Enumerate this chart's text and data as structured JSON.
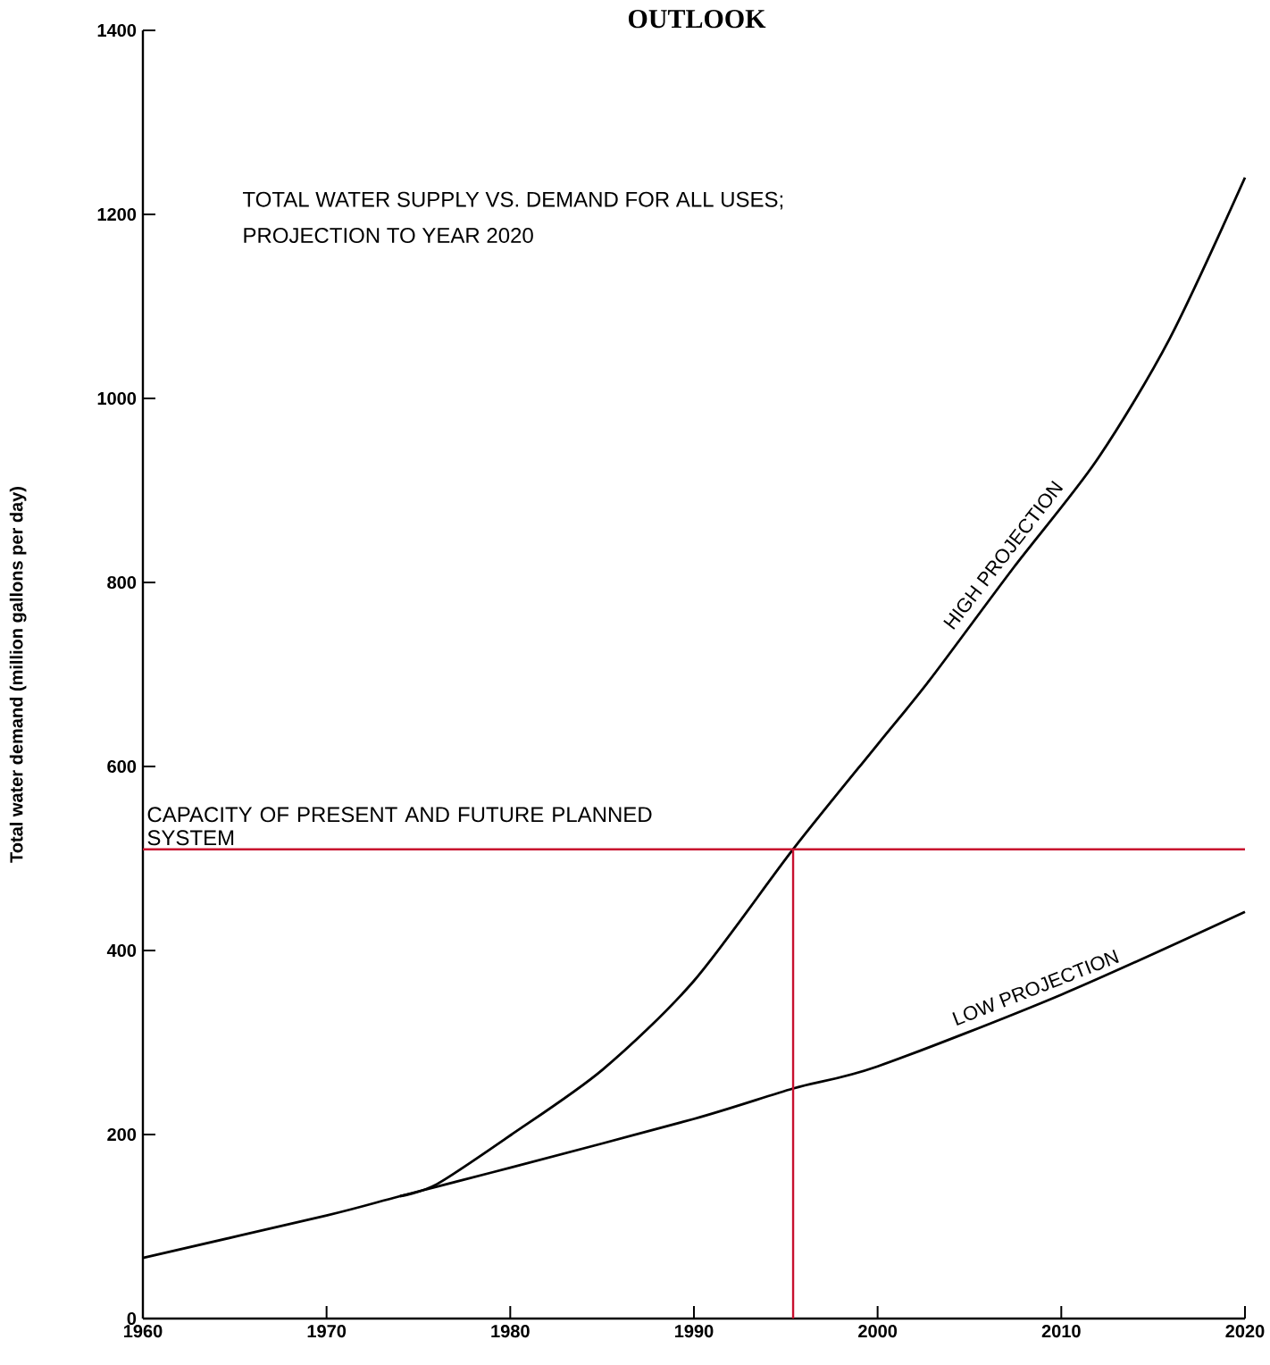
{
  "chart_data": {
    "type": "line",
    "title": "OUTLOOK",
    "ylabel": "Total water demand (million gallons per day)",
    "annotations": [
      "TOTAL WATER SUPPLY VS. DEMAND FOR ALL USES;",
      "PROJECTION TO YEAR 2020"
    ],
    "xlim": [
      1960,
      2020
    ],
    "xticks": [
      1960,
      1970,
      1980,
      1990,
      2000,
      2010,
      2020
    ],
    "ylim": [
      0,
      1400
    ],
    "yticks": [
      0,
      200,
      400,
      600,
      800,
      1000,
      1200,
      1400
    ],
    "grid": false,
    "marker": "none",
    "line_style": "solid",
    "series": [
      {
        "name": "HIGH PROJECTION",
        "color": "#000000",
        "x": [
          1974,
          1976,
          1980,
          1985,
          1990,
          1995.4,
          2000,
          2002.8,
          2007.4,
          2011.9,
          2015.9,
          2020
        ],
        "values": [
          133,
          146,
          199,
          270,
          367,
          510,
          624,
          693,
          816,
          932,
          1065,
          1240
        ]
      },
      {
        "name": "LOW PROJECTION",
        "color": "#000000",
        "x": [
          1960,
          1970,
          1974,
          1980,
          1990,
          1995.4,
          2000,
          2010,
          2020
        ],
        "values": [
          66,
          112,
          133,
          164,
          217,
          250,
          274,
          352,
          442
        ]
      },
      {
        "color": "#c8102e",
        "x": [
          1995.4,
          1995.4
        ],
        "values": [
          0,
          510
        ]
      }
    ],
    "ref_lines": [
      {
        "axis": "y",
        "value": 510,
        "label": "CAPACITY OF PRESENT AND FUTURE PLANNED SYSTEM",
        "color": "#c8102e"
      }
    ]
  }
}
